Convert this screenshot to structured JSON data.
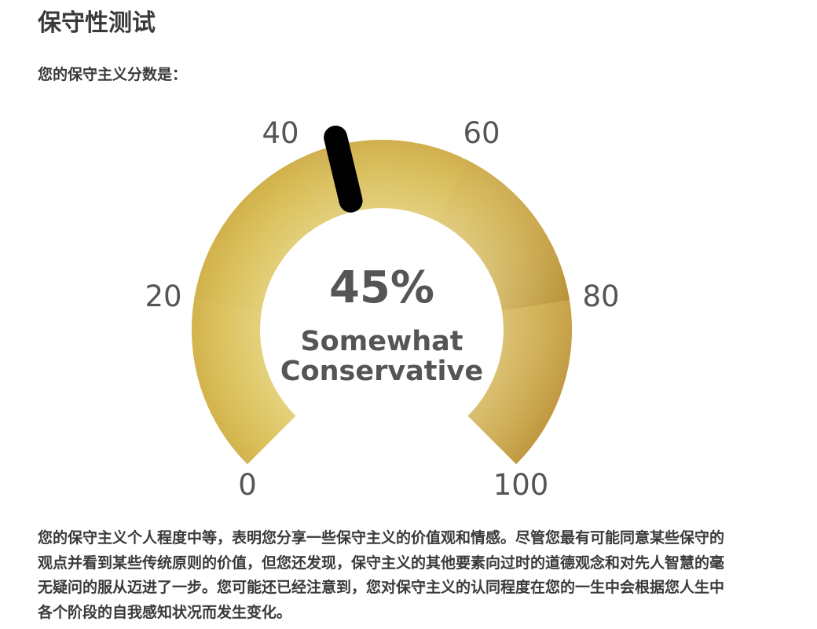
{
  "page": {
    "title": "保守性测试",
    "subtitle": "您的保守主义分数是：",
    "description": "您的保守主义个人程度中等，表明您分享一些保守主义的价值观和情感。尽管您最有可能同意某些保守的观点并看到某些传统原则的价值，但您还发现，保守主义的其他要素向过时的道德观念和对先人智慧的毫无疑问的服从迈进了一步。您可能还已经注意到，您对保守主义的认同程度在您的一生中会根据您人生中各个阶段的自我感知状况而发生变化。"
  },
  "gauge": {
    "score": 45,
    "score_text": "45%",
    "label_line1": "Somewhat",
    "label_line2": "Conservative",
    "min": 0,
    "max": 100,
    "ticks": [
      "0",
      "20",
      "40",
      "60",
      "80",
      "100"
    ],
    "colors": {
      "gold_light": "#e9da8f",
      "gold_mid": "#d6bc55",
      "gold_dark": "#b9862a",
      "needle": "#000000"
    }
  }
}
